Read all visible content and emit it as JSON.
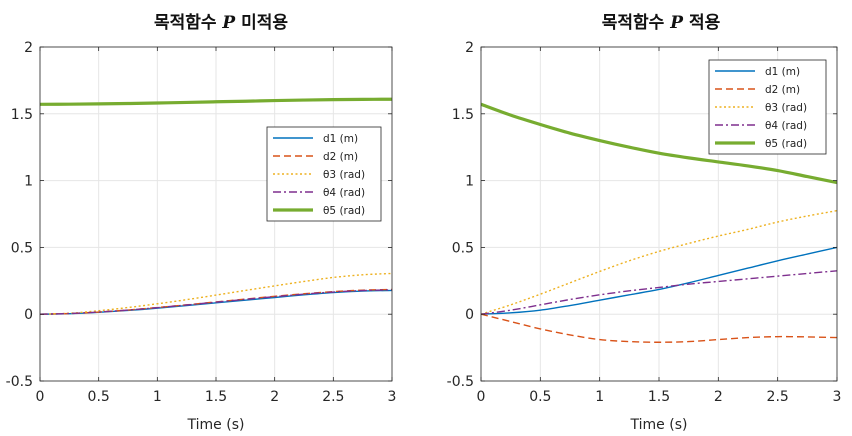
{
  "chart_data": [
    {
      "type": "line",
      "title": "목적함수 P 미적용",
      "title_parts": [
        "목적함수 ",
        "P",
        " 미적용"
      ],
      "xlabel": "Time (s)",
      "ylabel": "",
      "xlim": [
        0,
        3
      ],
      "ylim": [
        -0.5,
        2
      ],
      "xticks": [
        0,
        0.5,
        1,
        1.5,
        2,
        2.5,
        3
      ],
      "xtick_labels": [
        "0",
        "0.5",
        "1",
        "1.5",
        "2",
        "2.5",
        "3"
      ],
      "yticks": [
        -0.5,
        0,
        0.5,
        1,
        1.5,
        2
      ],
      "ytick_labels": [
        "-0.5",
        "0",
        "0.5",
        "1",
        "1.5",
        "2"
      ],
      "grid": true,
      "legend_position": "right",
      "x": [
        0,
        0.25,
        0.5,
        0.75,
        1,
        1.25,
        1.5,
        1.75,
        2,
        2.25,
        2.5,
        2.75,
        3
      ],
      "series": [
        {
          "name": "d1 (m)",
          "color": "#0072BD",
          "style": "solid",
          "values": [
            0,
            0.004,
            0.014,
            0.028,
            0.045,
            0.065,
            0.085,
            0.105,
            0.125,
            0.145,
            0.162,
            0.173,
            0.178
          ]
        },
        {
          "name": "d2 (m)",
          "color": "#D95319",
          "style": "dashed",
          "values": [
            0,
            0.005,
            0.016,
            0.031,
            0.05,
            0.07,
            0.092,
            0.113,
            0.134,
            0.153,
            0.169,
            0.18,
            0.185
          ]
        },
        {
          "name": "θ3 (rad)",
          "color": "#EDB120",
          "style": "dotted",
          "values": [
            0,
            0.007,
            0.026,
            0.05,
            0.078,
            0.109,
            0.143,
            0.178,
            0.212,
            0.245,
            0.275,
            0.295,
            0.305
          ]
        },
        {
          "name": "θ4 (rad)",
          "color": "#7E2F8E",
          "style": "dashdot",
          "values": [
            0,
            0.005,
            0.016,
            0.031,
            0.049,
            0.069,
            0.09,
            0.111,
            0.131,
            0.15,
            0.166,
            0.177,
            0.182
          ]
        },
        {
          "name": "θ5 (rad)",
          "color": "#77AC30",
          "style": "solid-thick",
          "values": [
            1.571,
            1.572,
            1.574,
            1.577,
            1.581,
            1.585,
            1.59,
            1.594,
            1.599,
            1.603,
            1.606,
            1.608,
            1.609
          ]
        }
      ]
    },
    {
      "type": "line",
      "title": "목적함수 P 적용",
      "title_parts": [
        "목적함수 ",
        "P",
        " 적용"
      ],
      "xlabel": "Time (s)",
      "ylabel": "",
      "xlim": [
        0,
        3
      ],
      "ylim": [
        -0.5,
        2
      ],
      "xticks": [
        0,
        0.5,
        1,
        1.5,
        2,
        2.5,
        3
      ],
      "xtick_labels": [
        "0",
        "0.5",
        "1",
        "1.5",
        "2",
        "2.5",
        "3"
      ],
      "yticks": [
        -0.5,
        0,
        0.5,
        1,
        1.5,
        2
      ],
      "ytick_labels": [
        "-0.5",
        "0",
        "0.5",
        "1",
        "1.5",
        "2"
      ],
      "grid": true,
      "legend_position": "top-right",
      "x": [
        0,
        0.25,
        0.5,
        0.75,
        1,
        1.25,
        1.5,
        1.75,
        2,
        2.25,
        2.5,
        2.75,
        3
      ],
      "series": [
        {
          "name": "d1 (m)",
          "color": "#0072BD",
          "style": "solid",
          "values": [
            0,
            0.01,
            0.03,
            0.065,
            0.105,
            0.145,
            0.185,
            0.235,
            0.29,
            0.345,
            0.4,
            0.45,
            0.5
          ]
        },
        {
          "name": "d2 (m)",
          "color": "#D95319",
          "style": "dashed",
          "values": [
            0,
            -0.055,
            -0.11,
            -0.155,
            -0.19,
            -0.205,
            -0.21,
            -0.205,
            -0.19,
            -0.175,
            -0.168,
            -0.17,
            -0.175
          ]
        },
        {
          "name": "θ3 (rad)",
          "color": "#EDB120",
          "style": "dotted",
          "values": [
            0,
            0.07,
            0.15,
            0.235,
            0.32,
            0.4,
            0.47,
            0.53,
            0.585,
            0.635,
            0.69,
            0.735,
            0.775
          ]
        },
        {
          "name": "θ4 (rad)",
          "color": "#7E2F8E",
          "style": "dashdot",
          "values": [
            0,
            0.03,
            0.07,
            0.11,
            0.145,
            0.175,
            0.2,
            0.225,
            0.245,
            0.265,
            0.285,
            0.305,
            0.325
          ]
        },
        {
          "name": "θ5 (rad)",
          "color": "#77AC30",
          "style": "solid-thick",
          "values": [
            1.571,
            1.49,
            1.42,
            1.355,
            1.3,
            1.25,
            1.205,
            1.17,
            1.14,
            1.11,
            1.075,
            1.03,
            0.985
          ]
        }
      ]
    }
  ]
}
